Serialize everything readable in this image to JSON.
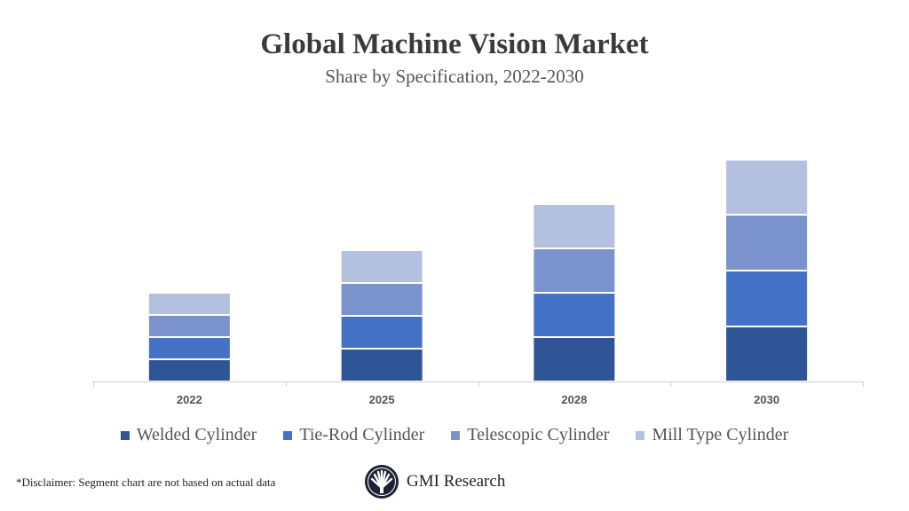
{
  "chart_data": {
    "type": "bar",
    "stacked": true,
    "title": "Global Machine Vision Market",
    "subtitle": "Share by Specification, 2022-2030",
    "categories": [
      "2022",
      "2025",
      "2028",
      "2030"
    ],
    "series": [
      {
        "name": "Welded Cylinder",
        "color": "#2f5597",
        "values": [
          2.5,
          3.7,
          5.0,
          6.2
        ]
      },
      {
        "name": "Tie-Rod Cylinder",
        "color": "#4472c4",
        "values": [
          2.5,
          3.7,
          5.0,
          6.3
        ]
      },
      {
        "name": "Telescopic Cylinder",
        "color": "#7a93cc",
        "values": [
          2.5,
          3.7,
          5.0,
          6.3
        ]
      },
      {
        "name": "Mill Type Cylinder",
        "color": "#b4c0e0",
        "values": [
          2.5,
          3.7,
          5.0,
          6.2
        ]
      }
    ],
    "xlabel": "",
    "ylabel": "",
    "grid": false,
    "legend": "bottom"
  },
  "footer": {
    "disclaimer": "*Disclaimer:  Segment chart are not based on actual data",
    "logo_text": "GMI Research"
  }
}
